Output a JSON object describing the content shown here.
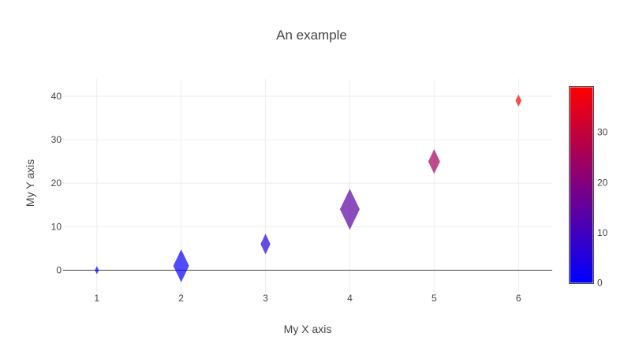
{
  "chart_data": {
    "type": "scatter",
    "title": "An example",
    "xlabel": "My X axis",
    "ylabel": "My Y axis",
    "marker_symbol": "diamond-tall",
    "x": [
      1,
      2,
      3,
      4,
      5,
      6
    ],
    "y": [
      0,
      1,
      6,
      14,
      25,
      39
    ],
    "marker_size": [
      2,
      8,
      5,
      10,
      6,
      3
    ],
    "xlim": [
      0.6,
      6.4
    ],
    "ylim": [
      -5,
      44
    ],
    "xticks": [
      1,
      2,
      3,
      4,
      5,
      6
    ],
    "yticks": [
      0,
      10,
      20,
      30,
      40
    ],
    "grid": true,
    "colorscale": {
      "low_color": "#0000ff",
      "high_color": "#ff0000",
      "range": [
        0,
        39
      ],
      "ticks": [
        0,
        10,
        20,
        30
      ],
      "placement": "right"
    }
  }
}
